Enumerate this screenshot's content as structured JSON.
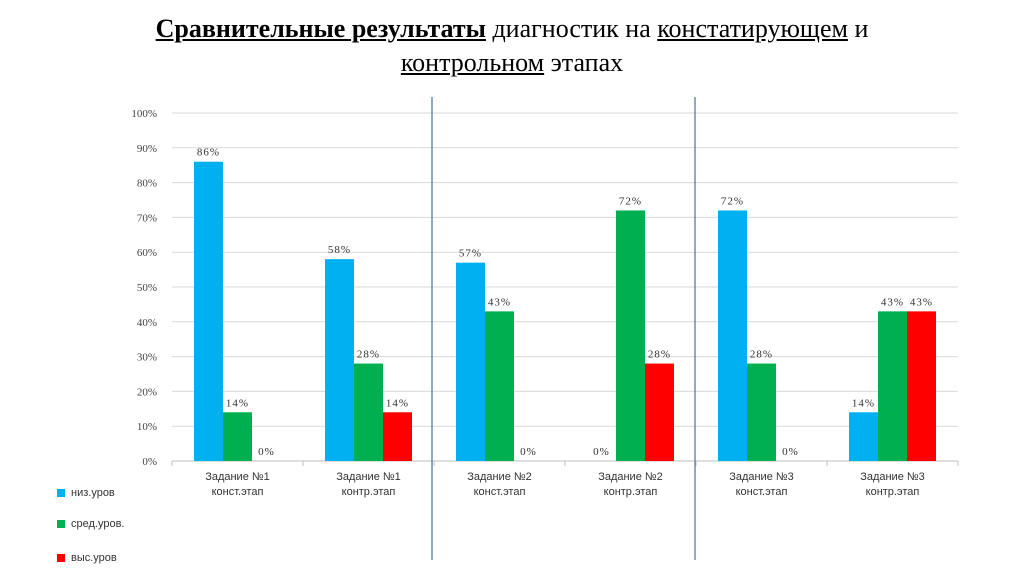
{
  "title": {
    "part1": "Сравнительные результаты",
    "part2": " диагностик на ",
    "part3": "констатирующем",
    "part4": " и",
    "part5": "контрольном",
    "part6": " этапах"
  },
  "colors": {
    "низ": "#00B0F0",
    "сред": "#00B050",
    "выс": "#FF0000",
    "divider": "#4A6FA5",
    "grid": "#D9D9D9"
  },
  "chart_data": {
    "type": "bar",
    "categories": [
      [
        "Задание №1",
        "конст.этап"
      ],
      [
        "Задание №1",
        "контр.этап"
      ],
      [
        "Задание №2",
        "конст.этап"
      ],
      [
        "Задание №2",
        "контр.этап"
      ],
      [
        "Задание №3",
        "конст.этап"
      ],
      [
        "Задание №3",
        "контр.этап"
      ]
    ],
    "series": [
      {
        "name": "низ.уров",
        "color": "#00B0F0",
        "values": [
          86,
          58,
          57,
          0,
          72,
          14
        ],
        "labels": [
          "86%",
          "58%",
          "57%",
          "0%",
          "72%",
          "14%"
        ]
      },
      {
        "name": "сред.уров.",
        "color": "#00B050",
        "values": [
          14,
          28,
          43,
          72,
          28,
          43
        ],
        "labels": [
          "14%",
          "28%",
          "43%",
          "72%",
          "28%",
          "43%"
        ]
      },
      {
        "name": "выс.уров",
        "color": "#FF0000",
        "values": [
          0,
          14,
          0,
          28,
          0,
          43
        ],
        "labels": [
          "0%",
          "14%",
          "0%",
          "28%",
          "0%",
          "43%"
        ]
      }
    ],
    "ylim": [
      0,
      100
    ],
    "yticks": [
      "0%",
      "10%",
      "20%",
      "30%",
      "40%",
      "50%",
      "60%",
      "70%",
      "80%",
      "90%",
      "100%"
    ],
    "grid": true,
    "legend_position": "bottom-left"
  }
}
